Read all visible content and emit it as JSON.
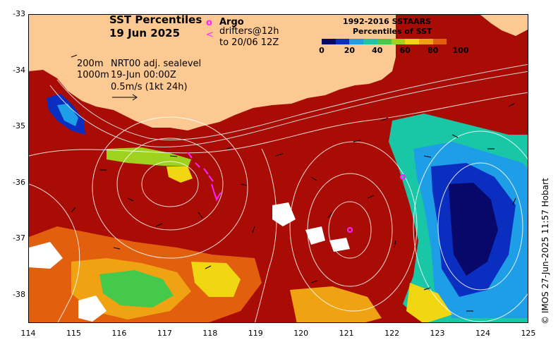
{
  "title": {
    "line1": "SST Percentiles",
    "line2": "19 Jun 2025"
  },
  "markers": {
    "argo_symbol": "o",
    "argo_label": "Argo",
    "drifter_symbol": "<",
    "drifter_line1": "drifters@12h",
    "drifter_line2": "to 20/06 12Z"
  },
  "contours": {
    "line1_depth": "200m",
    "line2_depth": "1000m",
    "line1_text": "NRT00 adj. sealevel",
    "line2_text": "19-Jun 00:00Z",
    "scale_text": "0.5m/s (1kt 24h)"
  },
  "legend": {
    "title1": "1992-2016 SSTAARS",
    "title2": "Percentiles of SST",
    "ticks": [
      "0",
      "20",
      "40",
      "60",
      "80",
      "100"
    ],
    "colors": [
      "#08086a",
      "#0a2fc0",
      "#1f9ee8",
      "#19c6a5",
      "#45c94a",
      "#9fd21c",
      "#f1d712",
      "#f0a312",
      "#e25f0d",
      "#a90c04"
    ]
  },
  "axes": {
    "y_ticks": [
      "-33",
      "-34",
      "-35",
      "-36",
      "-37",
      "-38"
    ],
    "x_ticks": [
      "114",
      "115",
      "116",
      "117",
      "118",
      "119",
      "120",
      "121",
      "122",
      "123",
      "124",
      "125"
    ]
  },
  "credit": "© IMOS 27-Jun-2025 11:57 Hobart",
  "colors": {
    "land": "#fcc992",
    "ocean_warm": "#a90c04",
    "argo": "#ff20ff"
  }
}
